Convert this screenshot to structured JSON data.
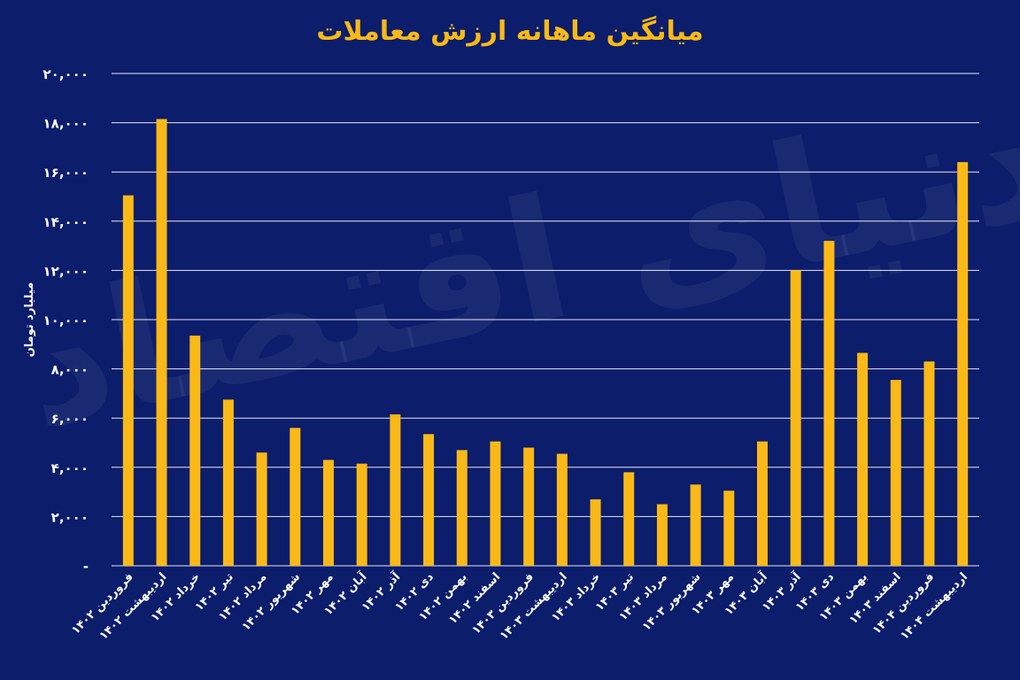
{
  "chart_data": {
    "type": "bar",
    "title": "میانگین ماهانه ارزش معاملات",
    "ylabel": "میلیارد تومان",
    "xlabel": "",
    "ylim": [
      0,
      20000
    ],
    "grid": true,
    "bar_color": "#fbb917",
    "background_color": "#0b1d6b",
    "grid_color": "#ffffff",
    "y_ticks": [
      {
        "value": 0,
        "label": "-"
      },
      {
        "value": 2000,
        "label": "۲,۰۰۰"
      },
      {
        "value": 4000,
        "label": "۴,۰۰۰"
      },
      {
        "value": 6000,
        "label": "۶,۰۰۰"
      },
      {
        "value": 8000,
        "label": "۸,۰۰۰"
      },
      {
        "value": 10000,
        "label": "۱۰,۰۰۰"
      },
      {
        "value": 12000,
        "label": "۱۲,۰۰۰"
      },
      {
        "value": 14000,
        "label": "۱۴,۰۰۰"
      },
      {
        "value": 16000,
        "label": "۱۶,۰۰۰"
      },
      {
        "value": 18000,
        "label": "۱۸,۰۰۰"
      },
      {
        "value": 20000,
        "label": "۲۰,۰۰۰"
      }
    ],
    "categories": [
      "فروردین ۱۴۰۲",
      "اردیبهشت ۱۴۰۲",
      "خرداد ۱۴۰۲",
      "تیر ۱۴۰۲",
      "مرداد ۱۴۰۲",
      "شهریور ۱۴۰۲",
      "مهر ۱۴۰۲",
      "آبان ۱۴۰۲",
      "آذر ۱۴۰۲",
      "دی ۱۴۰۲",
      "بهمن ۱۴۰۲",
      "اسفند ۱۴۰۲",
      "فروردین ۱۴۰۳",
      "اردیبهشت ۱۴۰۳",
      "خرداد ۱۴۰۳",
      "تیر ۱۴۰۳",
      "مرداد ۱۴۰۳",
      "شهریور ۱۴۰۳",
      "مهر ۱۴۰۳",
      "آبان ۱۴۰۳",
      "آذر ۱۴۰۳",
      "دی ۱۴۰۳",
      "بهمن ۱۴۰۳",
      "اسفند ۱۴۰۳",
      "فروردین ۱۴۰۴",
      "اردیبهشت ۱۴۰۴"
    ],
    "values": [
      15050,
      18150,
      9350,
      6750,
      4600,
      5600,
      4300,
      4150,
      6150,
      5350,
      4700,
      5050,
      4800,
      4550,
      2700,
      3800,
      2500,
      3300,
      3050,
      5050,
      12000,
      13200,
      8650,
      7550,
      8300,
      16400
    ]
  },
  "watermark": "دنیای اقتصاد"
}
